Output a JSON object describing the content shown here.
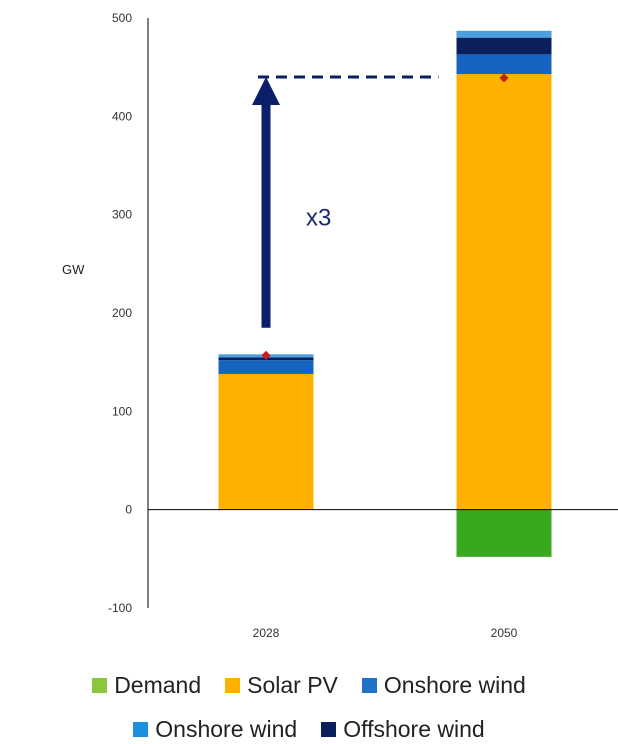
{
  "chart_data": {
    "type": "bar",
    "stacked": true,
    "categories": [
      "2028",
      "2050"
    ],
    "ylabel": "GW",
    "ylim": [
      -100,
      500
    ],
    "yticks": [
      -100,
      0,
      100,
      200,
      300,
      400,
      500
    ],
    "grid": false,
    "legend_position": "bottom",
    "series": [
      {
        "name": "Demand",
        "color": "#3aa81f",
        "values": [
          0,
          -48
        ]
      },
      {
        "name": "Solar PV",
        "color": "#ffb000",
        "values": [
          138,
          443
        ]
      },
      {
        "name": "Onshore wind",
        "color": "#1565c0",
        "values": [
          14,
          20
        ]
      },
      {
        "name": "Offshore wind",
        "color": "#0b1f5c",
        "values": [
          3,
          17
        ]
      },
      {
        "name": "Onshore wind",
        "color": "#4a9fe0",
        "values": [
          3,
          7
        ]
      }
    ],
    "markers": {
      "color": "#c81e1e",
      "values": [
        157,
        439
      ]
    },
    "annotation": {
      "text": "x3",
      "arrow_from": 185,
      "arrow_to": 440,
      "dashed_to_category": "2050"
    }
  },
  "legend": {
    "row1": [
      {
        "label": "Demand",
        "color": "#8cc63f"
      },
      {
        "label": "Solar PV",
        "color": "#ffb000"
      },
      {
        "label": "Onshore wind",
        "color": "#1f72c4"
      }
    ],
    "row2": [
      {
        "label": "Onshore wind",
        "color": "#1b8fe0"
      },
      {
        "label": "Offshore wind",
        "color": "#0b1f5c"
      }
    ]
  }
}
